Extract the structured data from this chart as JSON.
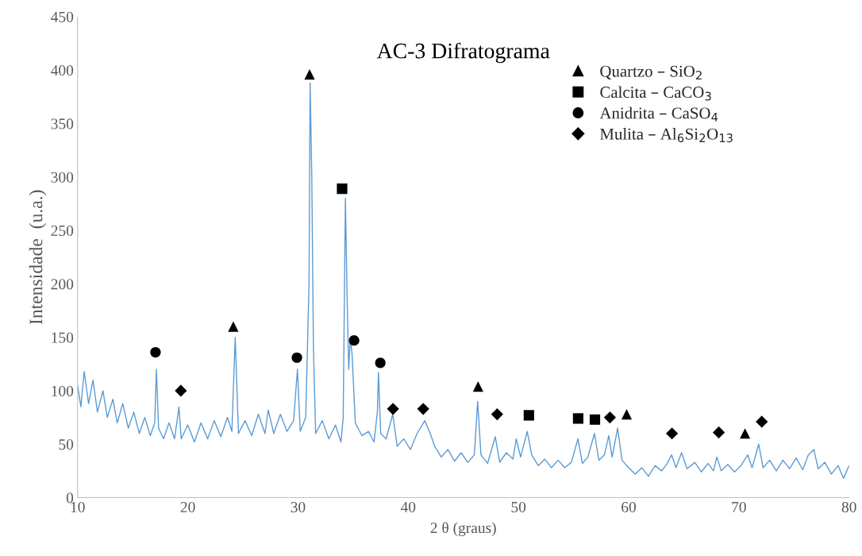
{
  "chart_data": {
    "type": "line",
    "title": "AC-3 Difratograma",
    "xlabel": "2 θ (graus)",
    "ylabel": "Intensidade  (u.a.)",
    "xlim": [
      10,
      80
    ],
    "xticks": [
      10,
      20,
      30,
      40,
      50,
      60,
      70,
      80
    ],
    "ylim": [
      0,
      450
    ],
    "yticks": [
      0,
      50,
      100,
      150,
      200,
      250,
      300,
      350,
      400,
      450
    ],
    "grid": false,
    "legend": "top right",
    "series": [
      {
        "color": "#5b9bd5",
        "marker": "none",
        "x": [
          10,
          10.3,
          10.6,
          11,
          11.4,
          11.8,
          12.3,
          12.7,
          13.2,
          13.6,
          14.1,
          14.6,
          15.1,
          15.6,
          16.1,
          16.6,
          17.0,
          17.15,
          17.35,
          17.8,
          18.3,
          18.8,
          19.2,
          19.4,
          20.0,
          20.6,
          21.2,
          21.8,
          22.4,
          23.0,
          23.6,
          24.0,
          24.3,
          24.6,
          25.2,
          25.8,
          26.4,
          27.0,
          27.3,
          27.8,
          28.4,
          29.0,
          29.6,
          29.95,
          30.2,
          30.7,
          31.0,
          31.1,
          31.25,
          31.4,
          31.6,
          32.2,
          32.8,
          33.4,
          33.9,
          34.1,
          34.3,
          34.45,
          34.6,
          34.75,
          34.9,
          35.2,
          35.8,
          36.4,
          36.9,
          37.2,
          37.3,
          37.5,
          38.0,
          38.6,
          39.0,
          39.6,
          40.2,
          40.8,
          41.5,
          42.0,
          42.4,
          43.0,
          43.6,
          44.2,
          44.8,
          45.4,
          46.0,
          46.3,
          46.6,
          47.2,
          47.9,
          48.3,
          48.9,
          49.5,
          49.8,
          50.2,
          50.8,
          51.2,
          51.8,
          52.4,
          53.0,
          53.6,
          54.2,
          54.8,
          55.4,
          55.8,
          56.3,
          56.9,
          57.3,
          57.8,
          58.2,
          58.5,
          59.0,
          59.4,
          60.0,
          60.6,
          61.2,
          61.8,
          62.4,
          63.0,
          63.5,
          63.9,
          64.3,
          64.8,
          65.3,
          66.0,
          66.6,
          67.2,
          67.7,
          68.0,
          68.4,
          69.0,
          69.6,
          70.2,
          70.8,
          71.2,
          71.8,
          72.2,
          72.8,
          73.4,
          74.0,
          74.6,
          75.2,
          75.8,
          76.3,
          76.8,
          77.2,
          77.8,
          78.4,
          79.0,
          79.5,
          80.0
        ],
        "values": [
          105,
          85,
          118,
          88,
          110,
          80,
          100,
          75,
          92,
          70,
          88,
          65,
          80,
          60,
          75,
          58,
          70,
          120,
          65,
          55,
          70,
          55,
          85,
          55,
          68,
          52,
          70,
          55,
          72,
          57,
          75,
          62,
          150,
          60,
          72,
          58,
          78,
          60,
          82,
          60,
          78,
          62,
          72,
          120,
          62,
          75,
          200,
          388,
          300,
          140,
          60,
          72,
          55,
          68,
          52,
          75,
          280,
          190,
          120,
          150,
          135,
          70,
          58,
          62,
          52,
          80,
          117,
          60,
          55,
          78,
          48,
          55,
          45,
          60,
          72,
          60,
          48,
          38,
          45,
          34,
          42,
          33,
          40,
          90,
          40,
          32,
          57,
          33,
          42,
          36,
          55,
          38,
          62,
          40,
          30,
          36,
          28,
          35,
          28,
          33,
          55,
          32,
          38,
          60,
          35,
          40,
          58,
          38,
          65,
          35,
          28,
          22,
          28,
          20,
          30,
          25,
          32,
          40,
          28,
          42,
          27,
          33,
          24,
          32,
          25,
          38,
          25,
          31,
          24,
          30,
          40,
          28,
          50,
          28,
          35,
          25,
          35,
          27,
          37,
          26,
          40,
          45,
          27,
          33,
          22,
          30,
          18,
          30
        ]
      },
      {
        "type": "scatter",
        "name": "Quartzo – SiO$_{2}$",
        "color": "#000000",
        "marker": "triangle",
        "x": [
          31.05,
          24.13,
          46.34,
          59.82,
          70.56
        ],
        "values": [
          396,
          160,
          104,
          78,
          60
        ]
      },
      {
        "type": "scatter",
        "name": "Calcita – CaCO$_{3}$",
        "color": "#000000",
        "marker": "square",
        "x": [
          34.0,
          50.95,
          55.42,
          56.94
        ],
        "values": [
          289,
          77,
          74,
          73
        ]
      },
      {
        "type": "scatter",
        "name": "Anidrita – CaSO$_{4}$",
        "color": "#000000",
        "marker": "circle",
        "x": [
          17.07,
          29.9,
          35.09,
          37.47
        ],
        "values": [
          136,
          131,
          147,
          126
        ]
      },
      {
        "type": "scatter",
        "name": "Mulita – Al$_{6}$Si$_{2}$O$_{13}$",
        "color": "#000000",
        "marker": "diamond",
        "x": [
          19.37,
          38.62,
          41.36,
          48.07,
          58.3,
          63.93,
          68.18,
          72.08
        ],
        "values": [
          100,
          83,
          83,
          78,
          75,
          60,
          61,
          71
        ]
      }
    ]
  }
}
